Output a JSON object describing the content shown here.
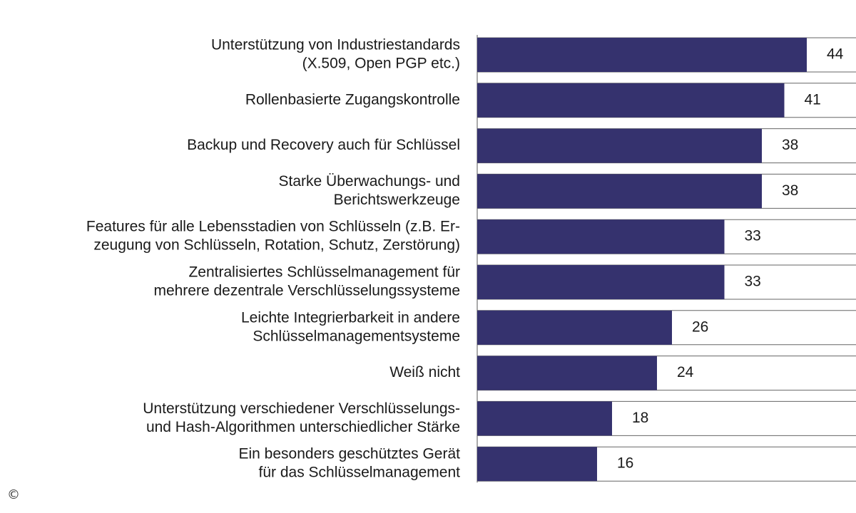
{
  "chart_data": {
    "type": "bar",
    "orientation": "horizontal",
    "categories": [
      [
        "Unterstützung von Industriestandards",
        "(X.509, Open PGP etc.)"
      ],
      [
        "Rollenbasierte Zugangskontrolle"
      ],
      [
        "Backup und Recovery auch für Schlüssel"
      ],
      [
        "Starke Überwachungs- und",
        "Berichtswerkzeuge"
      ],
      [
        "Features für alle Lebensstadien von Schlüsseln (z.B. Er-",
        "zeugung von Schlüsseln, Rotation, Schutz, Zerstörung)"
      ],
      [
        "Zentralisiertes Schlüsselmanagement für",
        "mehrere dezentrale Verschlüsselungssysteme"
      ],
      [
        "Leichte Integrierbarkeit in andere",
        "Schlüsselmanagementsysteme"
      ],
      [
        "Weiß nicht"
      ],
      [
        "Unterstützung verschiedener Verschlüsselungs-",
        "und Hash-Algorithmen unterschiedlicher Stärke"
      ],
      [
        "Ein besonders geschütztes Gerät",
        "für das Schlüsselmanagement"
      ]
    ],
    "values": [
      44,
      41,
      38,
      38,
      33,
      33,
      26,
      24,
      18,
      16
    ],
    "bar_color": "#35326e",
    "xlim": [
      0,
      50
    ],
    "grid": false
  },
  "copyright": "©"
}
